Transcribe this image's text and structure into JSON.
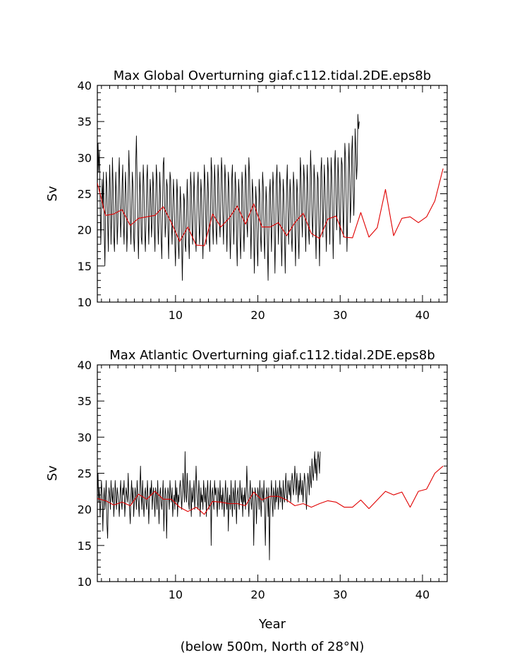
{
  "chart_data": [
    {
      "type": "line",
      "title": "Max Global Overturning giaf.c112.tidal.2DE.eps8b",
      "ylabel": "Sv",
      "xlim": [
        0.5,
        43
      ],
      "ylim": [
        10,
        40
      ],
      "xticks": [
        10,
        20,
        30,
        40
      ],
      "yticks": [
        10,
        15,
        20,
        25,
        30,
        35,
        40
      ],
      "series": [
        {
          "color": "#000000",
          "style": "monthly",
          "x_start": 0.5,
          "x_step": 0.0833,
          "values": [
            26,
            32,
            28,
            31,
            24,
            18,
            22,
            27,
            23,
            28,
            20,
            15,
            22,
            28,
            26,
            21,
            17,
            24,
            29,
            25,
            18,
            22,
            30,
            26,
            19,
            17,
            23,
            28,
            24,
            18,
            21,
            27,
            30,
            24,
            19,
            22,
            26,
            29,
            21,
            18,
            24,
            28,
            25,
            17,
            20,
            26,
            31,
            27,
            21,
            18,
            23,
            28,
            26,
            19,
            17,
            22,
            29,
            33,
            27,
            20,
            16,
            22,
            28,
            25,
            19,
            18,
            24,
            29,
            26,
            20,
            17,
            21,
            27,
            29,
            23,
            18,
            22,
            27,
            25,
            19,
            21,
            28,
            26,
            20,
            17,
            23,
            29,
            27,
            21,
            18,
            22,
            28,
            25,
            19,
            16,
            22,
            29,
            30,
            24,
            19,
            21,
            27,
            26,
            20,
            16,
            22,
            28,
            27,
            21,
            18,
            23,
            27,
            24,
            18,
            15,
            21,
            27,
            25,
            18,
            16,
            22,
            26,
            23,
            18,
            13,
            19,
            25,
            24,
            18,
            17,
            22,
            27,
            24,
            19,
            16,
            21,
            28,
            26,
            20,
            18,
            23,
            28,
            24,
            19,
            17,
            22,
            26,
            28,
            22,
            18,
            21,
            27,
            25,
            20,
            16,
            22,
            29,
            27,
            22,
            18,
            23,
            28,
            25,
            19,
            17,
            22,
            30,
            28,
            21,
            18,
            24,
            29,
            26,
            20,
            18,
            23,
            29,
            27,
            21,
            19,
            24,
            30,
            28,
            22,
            18,
            23,
            29,
            27,
            21,
            17,
            22,
            28,
            26,
            20,
            16,
            21,
            27,
            29,
            22,
            18,
            23,
            28,
            26,
            19,
            15,
            21,
            27,
            25,
            19,
            16,
            22,
            28,
            26,
            20,
            17,
            23,
            29,
            27,
            21,
            19,
            24,
            30,
            28,
            22,
            16,
            21,
            27,
            25,
            19,
            14,
            20,
            26,
            24,
            18,
            15,
            21,
            27,
            25,
            19,
            17,
            22,
            28,
            26,
            20,
            16,
            21,
            26,
            24,
            18,
            13,
            19,
            25,
            27,
            21,
            17,
            22,
            28,
            26,
            20,
            14,
            20,
            27,
            29,
            23,
            18,
            22,
            28,
            26,
            19,
            15,
            21,
            27,
            25,
            19,
            14,
            20,
            26,
            29,
            23,
            18,
            22,
            27,
            25,
            19,
            17,
            22,
            28,
            26,
            20,
            15,
            21,
            27,
            25,
            19,
            16,
            22,
            30,
            28,
            22,
            19,
            24,
            29,
            27,
            21,
            17,
            23,
            29,
            26,
            20,
            18,
            24,
            31,
            28,
            22,
            19,
            23,
            29,
            27,
            21,
            16,
            22,
            28,
            27,
            21,
            15,
            21,
            28,
            30,
            24,
            19,
            23,
            29,
            26,
            21,
            17,
            23,
            30,
            28,
            22,
            18,
            24,
            30,
            27,
            21,
            16,
            22,
            29,
            31,
            25,
            20,
            24,
            30,
            27,
            22,
            18,
            24,
            30,
            29,
            23,
            19,
            25,
            32,
            30,
            24,
            17,
            21,
            28,
            32,
            27,
            21,
            24,
            31,
            33,
            26,
            22,
            26,
            34,
            31,
            27,
            29,
            36,
            34,
            35
          ]
        },
        {
          "color": "#e00000",
          "style": "annual",
          "x": [
            0.5,
            1.5,
            2.5,
            3.5,
            4.5,
            5.5,
            6.5,
            7.5,
            8.5,
            9.5,
            10.5,
            11.5,
            12.5,
            13.5,
            14.5,
            15.5,
            16.5,
            17.5,
            18.5,
            19.5,
            20.5,
            21.5,
            22.5,
            23.5,
            24.5,
            25.5,
            26.5,
            27.5,
            28.5,
            29.5,
            30.5,
            31.5,
            32.5,
            33.5,
            34.5,
            35.5,
            36.5,
            37.5,
            38.5,
            39.5,
            40.5,
            41.5,
            42.5
          ],
          "values": [
            26.5,
            22.0,
            22.2,
            22.8,
            20.6,
            21.6,
            21.8,
            22.0,
            23.2,
            21.0,
            18.4,
            20.4,
            17.9,
            17.8,
            22.2,
            20.4,
            21.6,
            23.3,
            20.8,
            23.6,
            20.4,
            20.4,
            21.0,
            19.2,
            21.0,
            22.3,
            19.5,
            18.8,
            21.5,
            21.9,
            19.0,
            18.9,
            22.4,
            19.0,
            20.3,
            25.6,
            19.2,
            21.6,
            21.8,
            21.0,
            21.8,
            24.0,
            28.5
          ]
        }
      ]
    },
    {
      "type": "line",
      "title": "Max Atlantic Overturning giaf.c112.tidal.2DE.eps8b",
      "ylabel": "Sv",
      "xlabel": "Year",
      "xlim": [
        0.5,
        43
      ],
      "ylim": [
        10,
        40
      ],
      "xticks": [
        10,
        20,
        30,
        40
      ],
      "yticks": [
        10,
        15,
        20,
        25,
        30,
        35,
        40
      ],
      "series": [
        {
          "color": "#000000",
          "style": "monthly",
          "x_start": 0.5,
          "x_step": 0.0833,
          "values": [
            22,
            25,
            21,
            23,
            19,
            21,
            24,
            22,
            17,
            21,
            23,
            20,
            22,
            24,
            18,
            16,
            21,
            23,
            22,
            20,
            24,
            22,
            21,
            23,
            19,
            21,
            24,
            22,
            20,
            23,
            22,
            21,
            19,
            22,
            24,
            21,
            20,
            23,
            22,
            24,
            19,
            21,
            23,
            22,
            21,
            25,
            22,
            20,
            18,
            22,
            24,
            21,
            23,
            19,
            21,
            23,
            22,
            20,
            24,
            22,
            21,
            19,
            23,
            26,
            22,
            20,
            24,
            21,
            19,
            22,
            23,
            21,
            20,
            24,
            22,
            18,
            21,
            23,
            22,
            24,
            20,
            22,
            23,
            21,
            19,
            23,
            22,
            20,
            24,
            21,
            18,
            22,
            23,
            21,
            20,
            22,
            24,
            17,
            21,
            23,
            22,
            16,
            21,
            23,
            22,
            20,
            24,
            22,
            21,
            23,
            19,
            21,
            22,
            20,
            24,
            21,
            23,
            19,
            22,
            21,
            23,
            24,
            22,
            20,
            22,
            25,
            23,
            21,
            28,
            22,
            21,
            25,
            23,
            21,
            20,
            24,
            22,
            19,
            23,
            21,
            22,
            24,
            20,
            22,
            26,
            23,
            21,
            20,
            24,
            22,
            19,
            23,
            21,
            22,
            20,
            24,
            22,
            21,
            23,
            19,
            22,
            24,
            21,
            20,
            22,
            24,
            15,
            22,
            23,
            21,
            20,
            24,
            22,
            23,
            21,
            19,
            23,
            22,
            20,
            24,
            21,
            22,
            20,
            23,
            21,
            19,
            22,
            24,
            21,
            20,
            23,
            17,
            21,
            22,
            20,
            24,
            21,
            19,
            23,
            22,
            20,
            24,
            21,
            18,
            22,
            23,
            21,
            20,
            24,
            22,
            21,
            23,
            19,
            22,
            21,
            23,
            20,
            22,
            26,
            23,
            21,
            19,
            22,
            24,
            21,
            20,
            23,
            22,
            15,
            20,
            23,
            22,
            18,
            21,
            23,
            22,
            20,
            24,
            21,
            19,
            23,
            22,
            21,
            24,
            20,
            15,
            21,
            23,
            22,
            19,
            23,
            13,
            20,
            22,
            24,
            21,
            19,
            23,
            22,
            20,
            24,
            21,
            22,
            23,
            20,
            22,
            24,
            21,
            23,
            22,
            20,
            24,
            22,
            21,
            23,
            25,
            22,
            21,
            24,
            23,
            22,
            24,
            21,
            23,
            25,
            24,
            22,
            23,
            26,
            24,
            22,
            25,
            23,
            21,
            24,
            22,
            25,
            23,
            22,
            24,
            21,
            23,
            25,
            24,
            22,
            20,
            23,
            25,
            24,
            22,
            26,
            24,
            23,
            27,
            25,
            24,
            26,
            28,
            25,
            27,
            24,
            26,
            28,
            27,
            25,
            28
          ]
        },
        {
          "color": "#e00000",
          "style": "annual",
          "x": [
            0.5,
            1.5,
            2.5,
            3.5,
            4.5,
            5.5,
            6.5,
            7.5,
            8.5,
            9.5,
            10.5,
            11.5,
            12.5,
            13.5,
            14.5,
            15.5,
            16.5,
            17.5,
            18.5,
            19.5,
            20.5,
            21.5,
            22.5,
            23.5,
            24.5,
            25.5,
            26.5,
            27.5,
            28.5,
            29.5,
            30.5,
            31.5,
            32.5,
            33.5,
            34.5,
            35.5,
            36.5,
            37.5,
            38.5,
            39.5,
            40.5,
            41.5,
            42.5
          ],
          "values": [
            21.5,
            21.2,
            20.6,
            21.0,
            20.5,
            22.1,
            21.4,
            22.5,
            21.4,
            21.4,
            20.3,
            19.7,
            20.3,
            19.3,
            21.1,
            21.0,
            20.8,
            20.8,
            20.5,
            22.4,
            21.3,
            21.8,
            21.8,
            21.3,
            20.5,
            20.8,
            20.3,
            20.8,
            21.2,
            21.0,
            20.3,
            20.3,
            21.3,
            20.1,
            21.3,
            22.5,
            22.0,
            22.4,
            20.3,
            22.5,
            22.8,
            25.0,
            26.0
          ]
        }
      ]
    }
  ],
  "footer": {
    "xlabel": "Year",
    "note": "(below 500m, North of 28°N)"
  }
}
